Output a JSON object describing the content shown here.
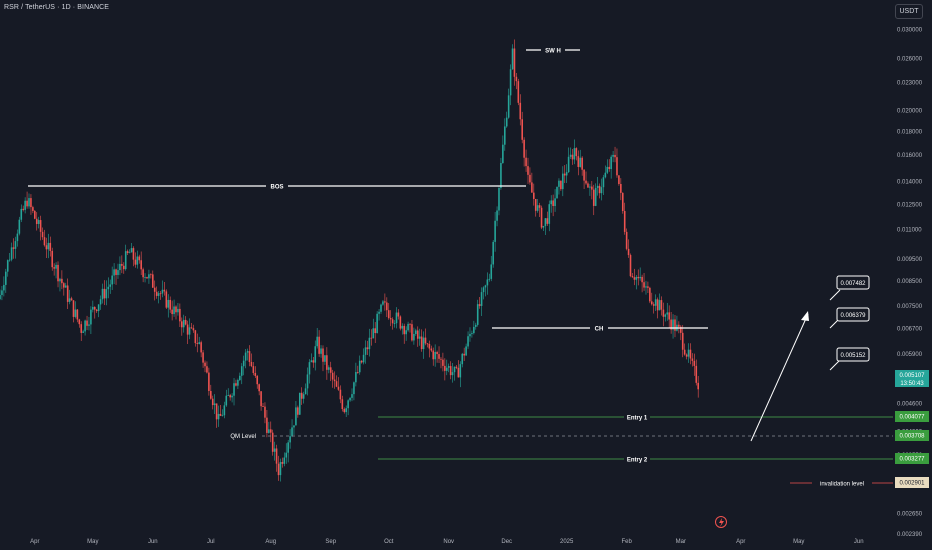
{
  "header": {
    "title": "RSR / TetherUS · 1D · BINANCE",
    "currency": "USDT"
  },
  "price_axis": {
    "ticks": [
      "0.030000",
      "0.026000",
      "0.023000",
      "0.020000",
      "0.018000",
      "0.016000",
      "0.014000",
      "0.012500",
      "0.011000",
      "0.009500",
      "0.008500",
      "0.007500",
      "0.006700",
      "0.005900",
      "0.005200",
      "0.004600",
      "0.004000",
      "0.003550",
      "0.002650",
      "0.002390"
    ],
    "current_price": "0.005107",
    "countdown": "13:50:43"
  },
  "time_axis": {
    "labels": [
      "Apr",
      "May",
      "Jun",
      "Jul",
      "Aug",
      "Sep",
      "Oct",
      "Nov",
      "Dec",
      "2025",
      "Feb",
      "Mar",
      "Apr",
      "May",
      "Jun"
    ]
  },
  "annotations": {
    "swing_high": "SW H",
    "bos": "BOS",
    "ch": "CH",
    "qm_level": "QM Level",
    "entry1": "Entry 1",
    "entry2": "Entry 2",
    "invalidation": "invalidation level",
    "target1": "0.005152",
    "target2": "0.006379",
    "target3": "0.007482"
  },
  "level_badges": {
    "entry1": "0.004077",
    "qm": "0.003708",
    "entry2": "0.003277",
    "invalidation": "0.002901"
  },
  "colors": {
    "background": "#161a25",
    "up": "#26a69a",
    "down": "#ef5350",
    "level_line": "#4caf50",
    "badge_green": "#3a9d3e",
    "badge_invalidation": "#e9dcc0",
    "annotation": "#ffffff"
  },
  "chart_data": {
    "type": "candlestick",
    "symbol": "RSR / TetherUS",
    "interval": "1D",
    "exchange": "BINANCE",
    "scale": "log",
    "ylim": [
      0.00232,
      0.0315
    ],
    "key_prices": [
      {
        "date": "2024-03-28",
        "price": 0.0128
      },
      {
        "date": "2024-04-25",
        "price": 0.0067
      },
      {
        "date": "2024-05-20",
        "price": 0.0098
      },
      {
        "date": "2024-06-25",
        "price": 0.0062
      },
      {
        "date": "2024-07-05",
        "price": 0.0042
      },
      {
        "date": "2024-07-20",
        "price": 0.006
      },
      {
        "date": "2024-08-05",
        "price": 0.0033
      },
      {
        "date": "2024-08-25",
        "price": 0.0062
      },
      {
        "date": "2024-09-08",
        "price": 0.0045
      },
      {
        "date": "2024-09-28",
        "price": 0.0075
      },
      {
        "date": "2024-11-05",
        "price": 0.0053
      },
      {
        "date": "2024-11-22",
        "price": 0.0087
      },
      {
        "date": "2024-12-04",
        "price": 0.0265
      },
      {
        "date": "2024-12-12",
        "price": 0.014
      },
      {
        "date": "2024-12-20",
        "price": 0.0112
      },
      {
        "date": "2025-01-05",
        "price": 0.0165
      },
      {
        "date": "2025-01-15",
        "price": 0.0128
      },
      {
        "date": "2025-01-26",
        "price": 0.016
      },
      {
        "date": "2025-02-03",
        "price": 0.009
      },
      {
        "date": "2025-02-28",
        "price": 0.0066
      },
      {
        "date": "2025-03-10",
        "price": 0.0051
      }
    ]
  }
}
